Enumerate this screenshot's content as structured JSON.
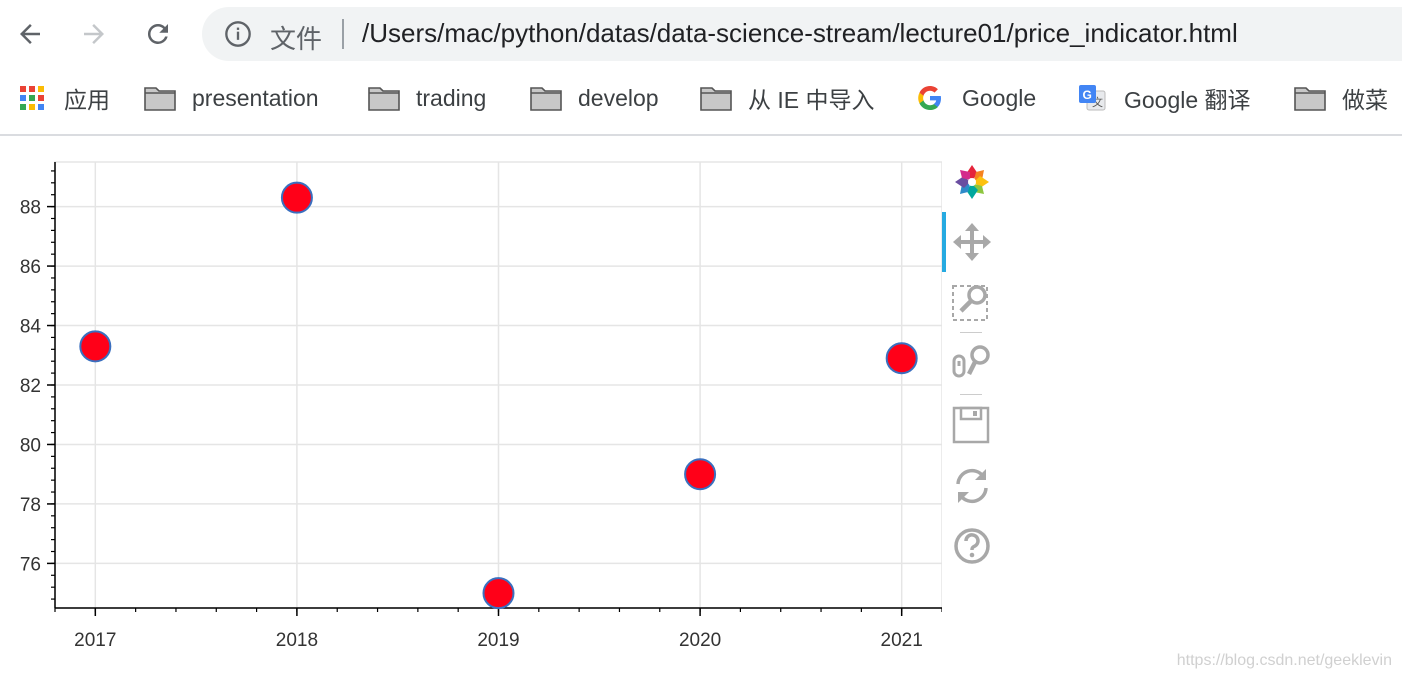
{
  "browser": {
    "omnibox": {
      "label": "文件",
      "url": "/Users/mac/python/datas/data-science-stream/lecture01/price_indicator.html"
    }
  },
  "bookmarks": [
    {
      "label": "应用",
      "icon": "apps-grid-icon"
    },
    {
      "label": "presentation",
      "icon": "folder-icon"
    },
    {
      "label": "trading",
      "icon": "folder-icon"
    },
    {
      "label": "develop",
      "icon": "folder-icon"
    },
    {
      "label": "从 IE 中导入",
      "icon": "folder-icon"
    },
    {
      "label": "Google",
      "icon": "google-icon"
    },
    {
      "label": "Google 翻译",
      "icon": "google-translate-icon"
    },
    {
      "label": "做菜",
      "icon": "folder-icon"
    }
  ],
  "chart_data": {
    "type": "scatter",
    "x": [
      2017,
      2018,
      2019,
      2020,
      2021
    ],
    "y": [
      83.3,
      88.3,
      75.0,
      79.0,
      82.9
    ],
    "xlim": [
      2016.8,
      2021.2
    ],
    "ylim": [
      74.5,
      89.5
    ],
    "x_ticks": [
      2017,
      2018,
      2019,
      2020,
      2021
    ],
    "y_ticks": [
      76,
      78,
      80,
      82,
      84,
      86,
      88
    ],
    "grid": true,
    "marker_fill": "#ff0018",
    "marker_stroke": "#3a6fbf",
    "grid_color": "#e5e5e5"
  },
  "toolbar": {
    "tools": [
      {
        "name": "bokeh-logo-icon"
      },
      {
        "name": "pan-icon",
        "active": true
      },
      {
        "name": "box-zoom-icon"
      },
      {
        "name": "wheel-zoom-icon"
      },
      {
        "name": "save-icon"
      },
      {
        "name": "reset-icon"
      },
      {
        "name": "help-icon"
      }
    ],
    "accent": "#26aae1"
  },
  "watermark": "https://blog.csdn.net/geeklevin"
}
